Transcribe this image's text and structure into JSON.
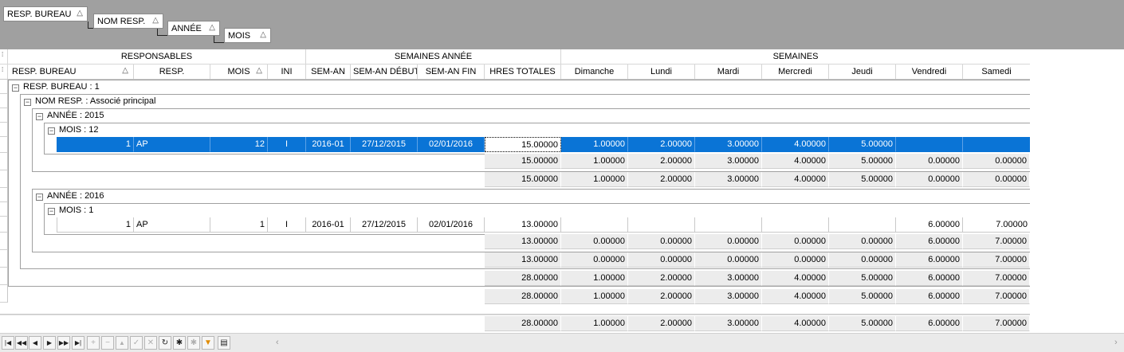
{
  "group_panel": {
    "chips": [
      "RESP. BUREAU",
      "NOM RESP.",
      "ANNÉE",
      "MOIS"
    ],
    "sort_glyph": "△"
  },
  "bands": {
    "responsables": "RESPONSABLES",
    "semaines_annee": "SEMAINES ANNÉE",
    "semaines": "SEMAINES"
  },
  "columns": {
    "resp_bureau": "RESP. BUREAU",
    "resp": "RESP.",
    "mois": "MOIS",
    "ini": "INI",
    "sem_an": "SEM-AN",
    "sem_an_debut": "SEM-AN DÉBUT",
    "sem_an_fin": "SEM-AN FIN",
    "hres_totales": "HRES TOTALES",
    "dimanche": "Dimanche",
    "lundi": "Lundi",
    "mardi": "Mardi",
    "mercredi": "Mercredi",
    "jeudi": "Jeudi",
    "vendredi": "Vendredi",
    "samedi": "Samedi"
  },
  "groups": {
    "bureau": "RESP. BUREAU : 1",
    "nom_resp": "NOM RESP. : Associé principal",
    "annee_2015": "ANNÉE : 2015",
    "mois_12": "MOIS : 12",
    "annee_2016": "ANNÉE : 2016",
    "mois_1": "MOIS : 1",
    "expand_glyph": "⊟"
  },
  "rows": {
    "r2015": {
      "bureau": "1",
      "resp": "AP",
      "mois": "12",
      "ini": "I",
      "sem_an": "2016-01",
      "debut": "27/12/2015",
      "fin": "02/01/2016",
      "hres": "15.00000",
      "dim": "1.00000",
      "lun": "2.00000",
      "mar": "3.00000",
      "mer": "4.00000",
      "jeu": "5.00000",
      "ven": "",
      "sam": ""
    },
    "r2016": {
      "bureau": "1",
      "resp": "AP",
      "mois": "1",
      "ini": "I",
      "sem_an": "2016-01",
      "debut": "27/12/2015",
      "fin": "02/01/2016",
      "hres": "13.00000",
      "dim": "",
      "lun": "",
      "mar": "",
      "mer": "",
      "jeu": "",
      "ven": "6.00000",
      "sam": "7.00000"
    }
  },
  "summaries": {
    "mois12": [
      "15.00000",
      "1.00000",
      "2.00000",
      "3.00000",
      "4.00000",
      "5.00000",
      "0.00000",
      "0.00000"
    ],
    "annee2015": [
      "15.00000",
      "1.00000",
      "2.00000",
      "3.00000",
      "4.00000",
      "5.00000",
      "0.00000",
      "0.00000"
    ],
    "mois1": [
      "13.00000",
      "0.00000",
      "0.00000",
      "0.00000",
      "0.00000",
      "0.00000",
      "6.00000",
      "7.00000"
    ],
    "annee2016": [
      "13.00000",
      "0.00000",
      "0.00000",
      "0.00000",
      "0.00000",
      "0.00000",
      "6.00000",
      "7.00000"
    ],
    "nomresp": [
      "28.00000",
      "1.00000",
      "2.00000",
      "3.00000",
      "4.00000",
      "5.00000",
      "6.00000",
      "7.00000"
    ],
    "bureau": [
      "28.00000",
      "1.00000",
      "2.00000",
      "3.00000",
      "4.00000",
      "5.00000",
      "6.00000",
      "7.00000"
    ],
    "grand": [
      "28.00000",
      "1.00000",
      "2.00000",
      "3.00000",
      "4.00000",
      "5.00000",
      "6.00000",
      "7.00000"
    ]
  },
  "navigator": {
    "buttons": [
      "first-icon",
      "prev-page-icon",
      "prev-icon",
      "next-icon",
      "next-page-icon",
      "last-icon",
      "insert-icon",
      "delete-icon",
      "edit-icon",
      "post-icon",
      "cancel-icon",
      "refresh-icon",
      "bookmark-icon",
      "goto-bookmark-icon",
      "filter-icon",
      "print-icon"
    ]
  },
  "colors": {
    "selection": "#0a74d6",
    "group_panel": "#a0a0a0",
    "summary": "#ececec"
  }
}
